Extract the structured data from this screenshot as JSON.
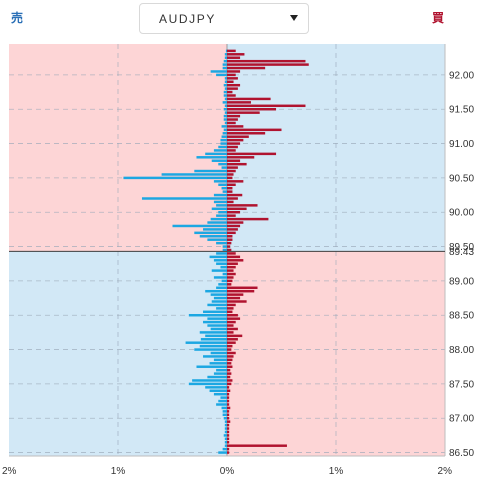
{
  "header": {
    "sell_label": "売",
    "buy_label": "買",
    "pair": "AUDJPY"
  },
  "colors": {
    "sell_bar": "#1ca7e2",
    "buy_bar": "#b0132f",
    "zone_pink": "#fdd5d6",
    "zone_blue": "#d2e8f6",
    "grid": "#9aa8b8",
    "current_line": "#3f3f3f"
  },
  "icons": {
    "pair_caret": "caret-down-icon"
  },
  "chart_data": {
    "type": "bar",
    "orientation": "horizontal-diverging",
    "current_price": 89.43,
    "current_price_label": "89.43",
    "ylim": [
      86.45,
      92.45
    ],
    "xlim": [
      -2,
      2
    ],
    "y_ticks": [
      "92.00",
      "91.50",
      "91.00",
      "90.50",
      "90.00",
      "89.50",
      "89.00",
      "88.50",
      "88.00",
      "87.50",
      "87.00",
      "86.50"
    ],
    "y_tick_values": [
      92.0,
      91.5,
      91.0,
      90.5,
      90.0,
      89.5,
      89.0,
      88.5,
      88.0,
      87.5,
      87.0,
      86.5
    ],
    "x_ticks": [
      "2%",
      "1%",
      "0%",
      "1%",
      "2%"
    ],
    "x_tick_values": [
      -2,
      -1,
      0,
      1,
      2
    ],
    "price_step": 0.05,
    "series": [
      {
        "name": "売",
        "side": "sell",
        "prices": [
          92.35,
          92.3,
          92.25,
          92.2,
          92.15,
          92.1,
          92.05,
          92.0,
          91.95,
          91.9,
          91.85,
          91.8,
          91.75,
          91.7,
          91.65,
          91.6,
          91.55,
          91.5,
          91.45,
          91.4,
          91.35,
          91.3,
          91.25,
          91.2,
          91.15,
          91.1,
          91.05,
          91.0,
          90.95,
          90.9,
          90.85,
          90.8,
          90.75,
          90.7,
          90.65,
          90.6,
          90.55,
          90.5,
          90.45,
          90.4,
          90.35,
          90.3,
          90.25,
          90.2,
          90.15,
          90.1,
          90.05,
          90.0,
          89.95,
          89.9,
          89.85,
          89.8,
          89.75,
          89.7,
          89.65,
          89.6,
          89.55,
          89.5,
          89.45,
          89.4,
          89.35,
          89.3,
          89.25,
          89.2,
          89.15,
          89.1,
          89.05,
          89.0,
          88.95,
          88.9,
          88.85,
          88.8,
          88.75,
          88.7,
          88.65,
          88.6,
          88.55,
          88.5,
          88.45,
          88.4,
          88.35,
          88.3,
          88.25,
          88.2,
          88.15,
          88.1,
          88.05,
          88.0,
          87.95,
          87.9,
          87.85,
          87.8,
          87.75,
          87.7,
          87.65,
          87.6,
          87.55,
          87.5,
          87.45,
          87.4,
          87.35,
          87.3,
          87.25,
          87.2,
          87.15,
          87.1,
          87.05,
          87.0,
          86.95,
          86.9,
          86.85,
          86.8,
          86.75,
          86.7,
          86.65,
          86.6,
          86.55,
          86.5
        ],
        "values": [
          0.01,
          0.02,
          0.02,
          0.03,
          0.04,
          0.04,
          0.15,
          0.1,
          0.02,
          0.02,
          0.03,
          0.02,
          0.03,
          0.03,
          0.02,
          0.04,
          0.02,
          0.03,
          0.02,
          0.03,
          0.03,
          0.02,
          0.05,
          0.03,
          0.04,
          0.05,
          0.06,
          0.06,
          0.08,
          0.12,
          0.2,
          0.28,
          0.14,
          0.08,
          0.05,
          0.3,
          0.6,
          0.95,
          0.12,
          0.08,
          0.05,
          0.04,
          0.12,
          0.78,
          0.12,
          0.1,
          0.14,
          0.08,
          0.1,
          0.15,
          0.18,
          0.5,
          0.22,
          0.3,
          0.25,
          0.18,
          0.1,
          0.04,
          0.04,
          0.1,
          0.16,
          0.12,
          0.1,
          0.06,
          0.14,
          0.04,
          0.12,
          0.05,
          0.08,
          0.1,
          0.2,
          0.15,
          0.12,
          0.14,
          0.18,
          0.1,
          0.22,
          0.35,
          0.18,
          0.22,
          0.18,
          0.15,
          0.25,
          0.2,
          0.24,
          0.38,
          0.25,
          0.3,
          0.15,
          0.22,
          0.12,
          0.16,
          0.28,
          0.1,
          0.12,
          0.18,
          0.32,
          0.35,
          0.2,
          0.16,
          0.12,
          0.06,
          0.08,
          0.1,
          0.05,
          0.04,
          0.04,
          0.03,
          0.02,
          0.02,
          0.02,
          0.02,
          0.03,
          0.02,
          0.02,
          0.02,
          0.04,
          0.08
        ]
      },
      {
        "name": "買",
        "side": "buy",
        "prices": [
          92.35,
          92.3,
          92.25,
          92.2,
          92.15,
          92.1,
          92.05,
          92.0,
          91.95,
          91.9,
          91.85,
          91.8,
          91.75,
          91.7,
          91.65,
          91.6,
          91.55,
          91.5,
          91.45,
          91.4,
          91.35,
          91.3,
          91.25,
          91.2,
          91.15,
          91.1,
          91.05,
          91.0,
          90.95,
          90.9,
          90.85,
          90.8,
          90.75,
          90.7,
          90.65,
          90.6,
          90.55,
          90.5,
          90.45,
          90.4,
          90.35,
          90.3,
          90.25,
          90.2,
          90.15,
          90.1,
          90.05,
          90.0,
          89.95,
          89.9,
          89.85,
          89.8,
          89.75,
          89.7,
          89.65,
          89.6,
          89.55,
          89.5,
          89.45,
          89.4,
          89.35,
          89.3,
          89.25,
          89.2,
          89.15,
          89.1,
          89.05,
          89.0,
          88.95,
          88.9,
          88.85,
          88.8,
          88.75,
          88.7,
          88.65,
          88.6,
          88.55,
          88.5,
          88.45,
          88.4,
          88.35,
          88.3,
          88.25,
          88.2,
          88.15,
          88.1,
          88.05,
          88.0,
          87.95,
          87.9,
          87.85,
          87.8,
          87.75,
          87.7,
          87.65,
          87.6,
          87.55,
          87.5,
          87.45,
          87.4,
          87.35,
          87.3,
          87.25,
          87.2,
          87.15,
          87.1,
          87.05,
          87.0,
          86.95,
          86.9,
          86.85,
          86.8,
          86.75,
          86.7,
          86.65,
          86.6,
          86.55,
          86.5
        ],
        "values": [
          0.08,
          0.16,
          0.12,
          0.72,
          0.75,
          0.35,
          0.12,
          0.08,
          0.1,
          0.06,
          0.12,
          0.1,
          0.05,
          0.08,
          0.4,
          0.22,
          0.72,
          0.45,
          0.3,
          0.12,
          0.1,
          0.08,
          0.15,
          0.5,
          0.35,
          0.2,
          0.15,
          0.12,
          0.1,
          0.08,
          0.45,
          0.25,
          0.12,
          0.18,
          0.1,
          0.08,
          0.06,
          0.05,
          0.15,
          0.08,
          0.05,
          0.05,
          0.14,
          0.1,
          0.06,
          0.28,
          0.18,
          0.12,
          0.08,
          0.38,
          0.15,
          0.12,
          0.1,
          0.08,
          0.05,
          0.05,
          0.04,
          0.03,
          0.04,
          0.08,
          0.12,
          0.15,
          0.1,
          0.08,
          0.06,
          0.08,
          0.06,
          0.05,
          0.04,
          0.28,
          0.25,
          0.15,
          0.12,
          0.18,
          0.08,
          0.06,
          0.05,
          0.1,
          0.12,
          0.08,
          0.06,
          0.1,
          0.06,
          0.14,
          0.1,
          0.08,
          0.05,
          0.04,
          0.08,
          0.06,
          0.05,
          0.04,
          0.05,
          0.03,
          0.04,
          0.03,
          0.05,
          0.04,
          0.02,
          0.03,
          0.02,
          0.02,
          0.02,
          0.02,
          0.03,
          0.02,
          0.02,
          0.02,
          0.03,
          0.02,
          0.02,
          0.02,
          0.02,
          0.02,
          0.02,
          0.55,
          0.02,
          0.02
        ]
      }
    ]
  }
}
